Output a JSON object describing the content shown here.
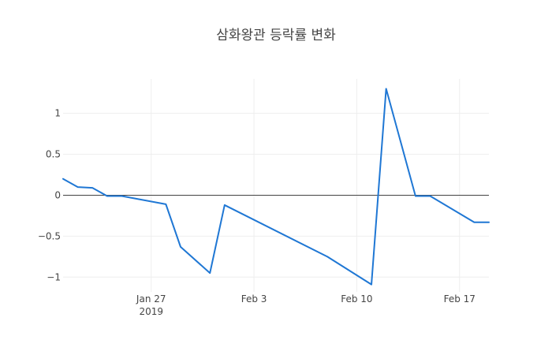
{
  "chart_data": {
    "type": "line",
    "title": "삼화왕관 등락률 변화",
    "xlabel": "",
    "ylabel": "",
    "x_axis": {
      "type": "date",
      "range": [
        "2019-01-21",
        "2019-02-19"
      ],
      "ticks": [
        {
          "value": "2019-01-27",
          "label": "Jan 27",
          "sublabel": "2019"
        },
        {
          "value": "2019-02-03",
          "label": "Feb 3",
          "sublabel": ""
        },
        {
          "value": "2019-02-10",
          "label": "Feb 10",
          "sublabel": ""
        },
        {
          "value": "2019-02-17",
          "label": "Feb 17",
          "sublabel": ""
        }
      ]
    },
    "y_axis": {
      "range": [
        -1.18,
        1.42
      ],
      "ticks": [
        {
          "value": 1,
          "label": "1"
        },
        {
          "value": 0.5,
          "label": "0.5"
        },
        {
          "value": 0,
          "label": "0"
        },
        {
          "value": -0.5,
          "label": "−0.5"
        },
        {
          "value": -1,
          "label": "−1"
        }
      ]
    },
    "grid": true,
    "legend": "none",
    "colors": {
      "line": "#1f77d4",
      "grid": "#eeeeee",
      "zero_line": "#444444",
      "text": "#444444"
    },
    "series": [
      {
        "x": [
          "2019-01-21",
          "2019-01-22",
          "2019-01-23",
          "2019-01-24",
          "2019-01-25",
          "2019-01-28",
          "2019-01-29",
          "2019-01-31",
          "2019-02-01",
          "2019-02-08",
          "2019-02-11",
          "2019-02-12",
          "2019-02-14",
          "2019-02-15",
          "2019-02-18",
          "2019-02-19"
        ],
        "y": [
          0.2,
          0.1,
          0.09,
          -0.01,
          -0.01,
          -0.11,
          -0.63,
          -0.95,
          -0.12,
          -0.75,
          -1.09,
          1.3,
          -0.01,
          -0.01,
          -0.33,
          -0.33
        ]
      }
    ]
  }
}
